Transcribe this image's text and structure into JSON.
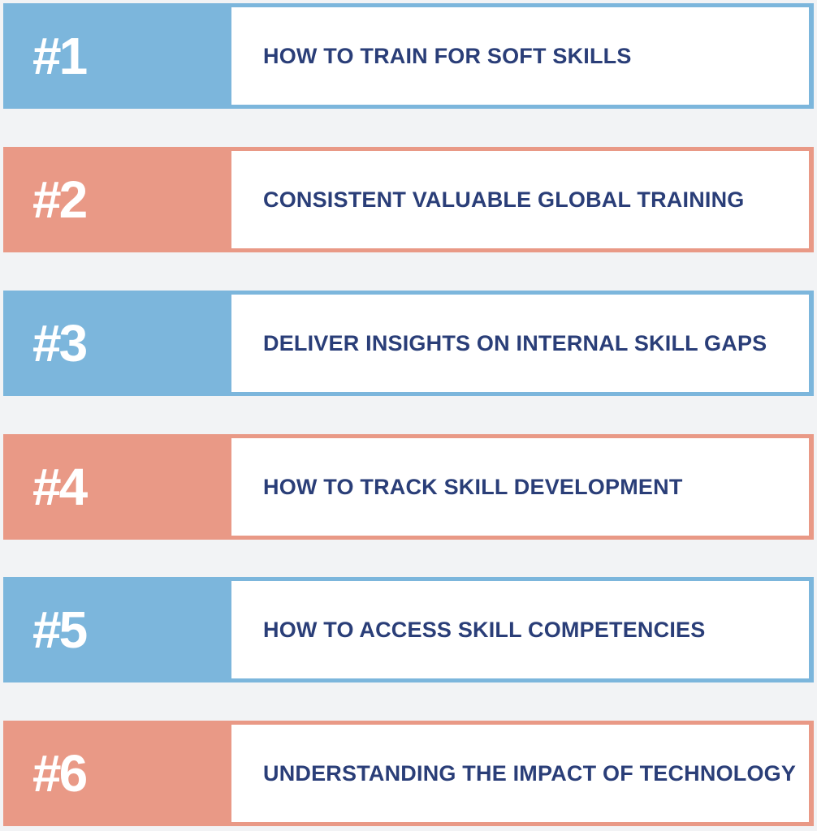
{
  "colors": {
    "background": "#f2f3f5",
    "blue": "#7cb6dc",
    "salmon": "#e99986",
    "label_text": "#2a3e78",
    "number_text": "#ffffff"
  },
  "items": [
    {
      "number": "#1",
      "label": "HOW TO TRAIN FOR SOFT SKILLS",
      "color": "blue"
    },
    {
      "number": "#2",
      "label": "CONSISTENT VALUABLE GLOBAL TRAINING",
      "color": "salmon"
    },
    {
      "number": "#3",
      "label": "DELIVER INSIGHTS ON INTERNAL SKILL GAPS",
      "color": "blue"
    },
    {
      "number": "#4",
      "label": "HOW TO TRACK SKILL DEVELOPMENT",
      "color": "salmon"
    },
    {
      "number": "#5",
      "label": "HOW TO ACCESS SKILL COMPETENCIES",
      "color": "blue"
    },
    {
      "number": "#6",
      "label": "UNDERSTANDING THE IMPACT OF TECHNOLOGY",
      "color": "salmon"
    }
  ]
}
